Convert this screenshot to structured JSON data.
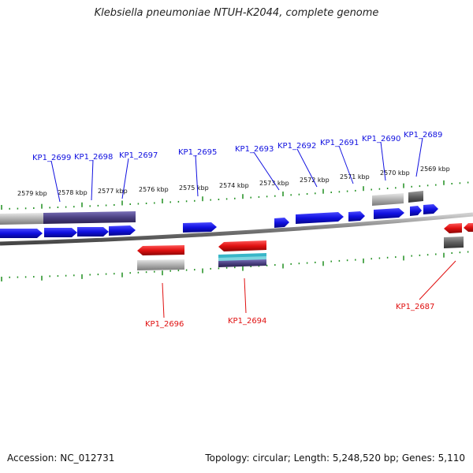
{
  "title": "Klebsiella pneumoniae NTUH-K2044, complete genome",
  "footer": {
    "accession": "Accession: NC_012731",
    "summary": "Topology: circular; Length: 5,248,520 bp; Genes: 5,110"
  },
  "colors": {
    "forward": "#1010e0",
    "reverse": "#e01010",
    "pseudo": "#b0b0b0",
    "rna": "#4a4080",
    "tick": "#1f8f1f",
    "backbone": "#8a8a8a"
  },
  "kbp_labels": [
    "2579 kbp",
    "2578 kbp",
    "2577 kbp",
    "2576 kbp",
    "2575 kbp",
    "2574 kbp",
    "2573 kbp",
    "2572 kbp",
    "2571 kbp",
    "2570 kbp",
    "2569 kbp"
  ],
  "forward_labels": [
    "KP1_2699",
    "KP1_2698",
    "KP1_2697",
    "KP1_2695",
    "KP1_2693",
    "KP1_2692",
    "KP1_2691",
    "KP1_2690",
    "KP1_2689"
  ],
  "reverse_labels": [
    "KP1_2696",
    "KP1_2694",
    "KP1_2687"
  ]
}
